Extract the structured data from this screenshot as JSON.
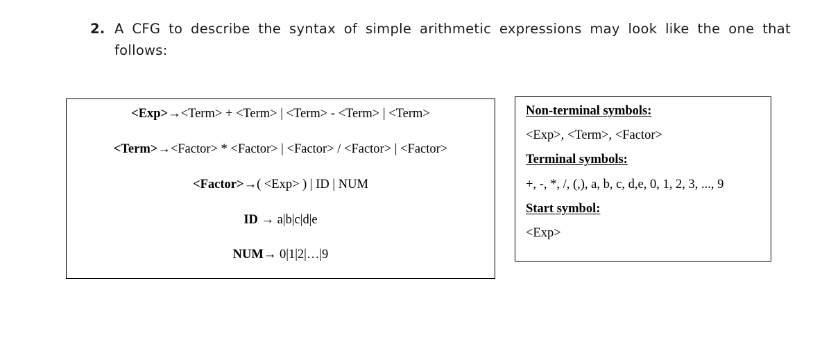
{
  "question": {
    "number": "2.",
    "text": "A CFG to describe the syntax of simple arithmetic expressions may look like the one that follows:"
  },
  "grammar": {
    "rules": [
      {
        "lhs": "<Exp>",
        "arrow": "→",
        "rhs": "<Term> + <Term> | <Term> - <Term> | <Term>"
      },
      {
        "lhs": "<Term>",
        "arrow": "→",
        "rhs": "<Factor> * <Factor> | <Factor> / <Factor> | <Factor>"
      },
      {
        "lhs": "<Factor>",
        "arrow": "→",
        "rhs": "( <Exp> ) | ID | NUM"
      },
      {
        "lhs": "ID",
        "arrow": " → ",
        "rhs": "a|b|c|d|e"
      },
      {
        "lhs": "NUM",
        "arrow": "→ ",
        "rhs": "0|1|2|…|9"
      }
    ]
  },
  "symbols": {
    "nonterminal_heading": "Non-terminal symbols:",
    "nonterminal_values": "<Exp>, <Term>, <Factor>",
    "terminal_heading": "Terminal symbols:",
    "terminal_values": "+, -, *, /, (,), a, b, c, d,e, 0, 1, 2, 3, ..., 9",
    "start_heading": "Start symbol:",
    "start_value": "<Exp>"
  }
}
